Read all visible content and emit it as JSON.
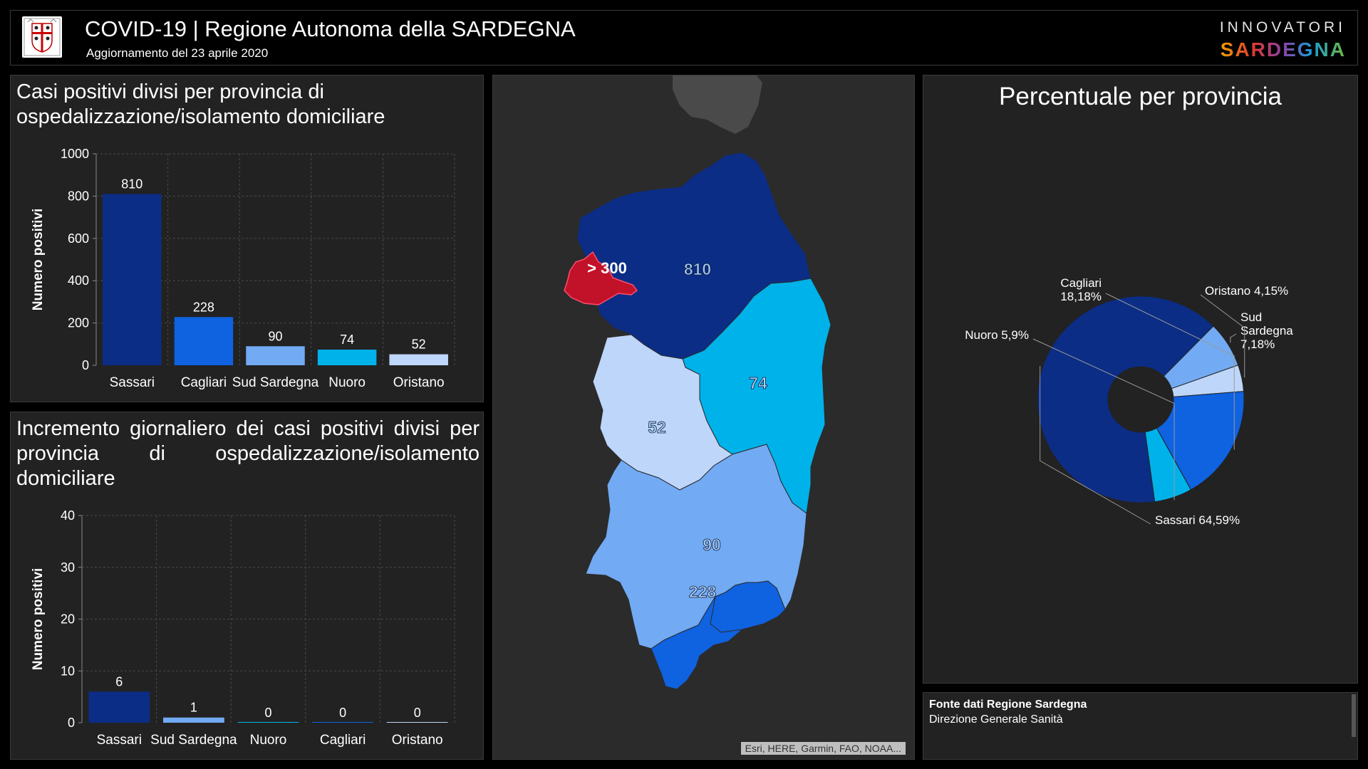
{
  "header": {
    "title": "COVID-19 | Regione Autonoma della SARDEGNA",
    "subtitle": "Aggiornamento del 23 aprile 2020",
    "brand_top": "INNOVATORI",
    "brand_bottom": "SARDEGNA"
  },
  "colors": {
    "sassari": "#0b2d86",
    "cagliari": "#0f62e0",
    "sud_sardegna": "#72aaf3",
    "nuoro": "#00b2ea",
    "oristano": "#bed6f9",
    "highlight": "#c1122a"
  },
  "chart_data": [
    {
      "type": "bar",
      "title": "Casi positivi divisi per provincia di ospedalizzazione/isolamento domiciliare",
      "ylabel": "Numero positivi",
      "xlabel": "",
      "categories": [
        "Sassari",
        "Cagliari",
        "Sud Sardegna",
        "Nuoro",
        "Oristano"
      ],
      "values": [
        810,
        228,
        90,
        74,
        52
      ],
      "data_labels": [
        "810",
        "228",
        "90",
        "74",
        "52"
      ],
      "colors": [
        "#0b2d86",
        "#0f62e0",
        "#72aaf3",
        "#00b2ea",
        "#bed6f9"
      ],
      "ylim": [
        0,
        1000
      ],
      "yticks": [
        0,
        200,
        400,
        600,
        800,
        1000
      ],
      "grid": true
    },
    {
      "type": "bar",
      "title": "Incremento giornaliero dei casi positivi divisi per provincia di ospedalizzazione/isolamento domiciliare",
      "ylabel": "Numero positivi",
      "xlabel": "",
      "categories": [
        "Sassari",
        "Sud Sardegna",
        "Nuoro",
        "Cagliari",
        "Oristano"
      ],
      "values": [
        6,
        1,
        0,
        0,
        0
      ],
      "data_labels": [
        "6",
        "1",
        "0",
        "0",
        "0"
      ],
      "colors": [
        "#0b2d86",
        "#72aaf3",
        "#00b2ea",
        "#0f62e0",
        "#bed6f9"
      ],
      "ylim": [
        0,
        40
      ],
      "yticks": [
        0,
        10,
        20,
        30,
        40
      ],
      "grid": true
    },
    {
      "type": "pie",
      "title": "Percentuale per provincia",
      "labels": [
        "Sassari",
        "Sud Sardegna",
        "Oristano",
        "Cagliari",
        "Nuoro"
      ],
      "values": [
        64.59,
        7.18,
        4.15,
        18.18,
        5.9
      ],
      "display_labels": [
        [
          "Sassari 64,59%"
        ],
        [
          "Sud",
          "Sardegna",
          "7,18%"
        ],
        [
          "Oristano 4,15%"
        ],
        [
          "Cagliari",
          "18,18%"
        ],
        [
          "Nuoro 5,9%"
        ]
      ],
      "colors": [
        "#0b2d86",
        "#72aaf3",
        "#bed6f9",
        "#0f62e0",
        "#00b2ea"
      ],
      "donut": true
    }
  ],
  "map": {
    "labels": {
      "sassari": "810",
      "nuoro": "74",
      "oristano": "52",
      "sud_sardegna": "90",
      "cagliari": "228",
      "highlight": "> 300"
    },
    "attribution": "Esri, HERE, Garmin, FAO, NOAA..."
  },
  "source": {
    "title": "Fonte dati Regione Sardegna",
    "subtitle": "Direzione Generale Sanità"
  }
}
